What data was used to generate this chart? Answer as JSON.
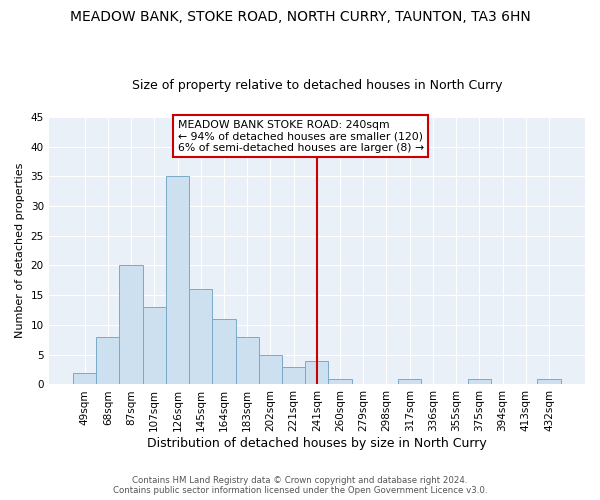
{
  "title": "MEADOW BANK, STOKE ROAD, NORTH CURRY, TAUNTON, TA3 6HN",
  "subtitle": "Size of property relative to detached houses in North Curry",
  "xlabel": "Distribution of detached houses by size in North Curry",
  "ylabel": "Number of detached properties",
  "bar_color": "#cce0f0",
  "bar_edge_color": "#7aaac8",
  "categories": [
    "49sqm",
    "68sqm",
    "87sqm",
    "107sqm",
    "126sqm",
    "145sqm",
    "164sqm",
    "183sqm",
    "202sqm",
    "221sqm",
    "241sqm",
    "260sqm",
    "279sqm",
    "298sqm",
    "317sqm",
    "336sqm",
    "355sqm",
    "375sqm",
    "394sqm",
    "413sqm",
    "432sqm"
  ],
  "values": [
    2,
    8,
    20,
    13,
    35,
    16,
    11,
    8,
    5,
    3,
    4,
    1,
    0,
    0,
    1,
    0,
    0,
    1,
    0,
    0,
    1
  ],
  "vline_index": 10,
  "vline_color": "#cc0000",
  "annotation_line1": "MEADOW BANK STOKE ROAD: 240sqm",
  "annotation_line2": "← 94% of detached houses are smaller (120)",
  "annotation_line3": "6% of semi-detached houses are larger (8) →",
  "ylim": [
    0,
    45
  ],
  "yticks": [
    0,
    5,
    10,
    15,
    20,
    25,
    30,
    35,
    40,
    45
  ],
  "footer1": "Contains HM Land Registry data © Crown copyright and database right 2024.",
  "footer2": "Contains public sector information licensed under the Open Government Licence v3.0.",
  "title_fontsize": 10,
  "subtitle_fontsize": 9,
  "xlabel_fontsize": 9,
  "ylabel_fontsize": 8,
  "tick_fontsize": 7.5,
  "bg_color": "#ffffff",
  "plot_bg_color": "#eaf0f8"
}
